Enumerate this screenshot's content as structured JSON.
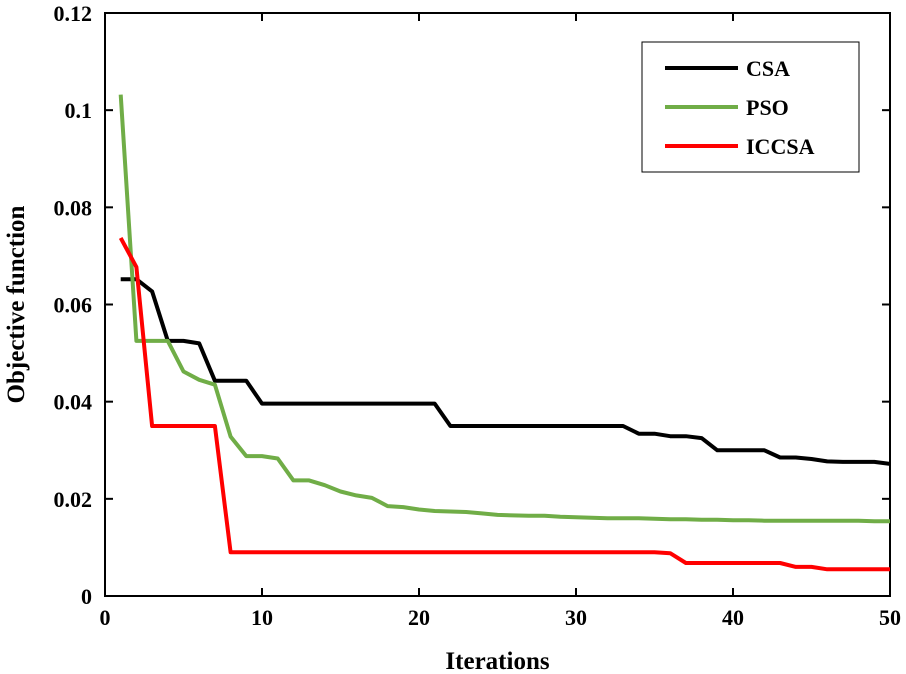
{
  "chart_data": {
    "type": "line",
    "title": "",
    "xlabel": "Iterations",
    "ylabel": "Objective function",
    "xlim": [
      0,
      50
    ],
    "ylim": [
      0,
      0.12
    ],
    "xticks": [
      0,
      10,
      20,
      30,
      40,
      50
    ],
    "xtick_labels": [
      "0",
      "10",
      "20",
      "30",
      "40",
      "50"
    ],
    "yticks": [
      0,
      0.02,
      0.04,
      0.06,
      0.08,
      0.1,
      0.12
    ],
    "ytick_labels": [
      "0",
      "0.02",
      "0.04",
      "0.06",
      "0.08",
      "0.1",
      "0.12"
    ],
    "grid": false,
    "legend_position": "top-right",
    "x": [
      1,
      2,
      3,
      4,
      5,
      6,
      7,
      8,
      9,
      10,
      11,
      12,
      13,
      14,
      15,
      16,
      17,
      18,
      19,
      20,
      21,
      22,
      23,
      24,
      25,
      26,
      27,
      28,
      29,
      30,
      31,
      32,
      33,
      34,
      35,
      36,
      37,
      38,
      39,
      40,
      41,
      42,
      43,
      44,
      45,
      46,
      47,
      48,
      49,
      50
    ],
    "series": [
      {
        "name": "CSA",
        "color": "#000000",
        "values": [
          0.0652,
          0.0652,
          0.0627,
          0.0525,
          0.0525,
          0.052,
          0.0443,
          0.0443,
          0.0443,
          0.0396,
          0.0396,
          0.0396,
          0.0396,
          0.0396,
          0.0396,
          0.0396,
          0.0396,
          0.0396,
          0.0396,
          0.0396,
          0.0396,
          0.035,
          0.035,
          0.035,
          0.035,
          0.035,
          0.035,
          0.035,
          0.035,
          0.035,
          0.035,
          0.035,
          0.035,
          0.0334,
          0.0334,
          0.0329,
          0.0329,
          0.0325,
          0.03,
          0.03,
          0.03,
          0.03,
          0.0285,
          0.0285,
          0.0282,
          0.0277,
          0.0276,
          0.0276,
          0.0276,
          0.0272
        ]
      },
      {
        "name": "PSO",
        "color": "#70AD47",
        "values": [
          0.1032,
          0.0525,
          0.0525,
          0.0525,
          0.0462,
          0.0445,
          0.0435,
          0.0328,
          0.0288,
          0.0288,
          0.0283,
          0.0238,
          0.0238,
          0.0228,
          0.0215,
          0.0207,
          0.0202,
          0.0185,
          0.0183,
          0.0178,
          0.0175,
          0.0174,
          0.0173,
          0.017,
          0.0167,
          0.0166,
          0.0165,
          0.0165,
          0.0163,
          0.0162,
          0.0161,
          0.016,
          0.016,
          0.016,
          0.0159,
          0.0158,
          0.0158,
          0.0157,
          0.0157,
          0.0156,
          0.0156,
          0.0155,
          0.0155,
          0.0155,
          0.0155,
          0.0155,
          0.0155,
          0.0155,
          0.0154,
          0.0154
        ]
      },
      {
        "name": "ICCSA",
        "color": "#FF0000",
        "values": [
          0.0737,
          0.0677,
          0.035,
          0.035,
          0.035,
          0.035,
          0.035,
          0.009,
          0.009,
          0.009,
          0.009,
          0.009,
          0.009,
          0.009,
          0.009,
          0.009,
          0.009,
          0.009,
          0.009,
          0.009,
          0.009,
          0.009,
          0.009,
          0.009,
          0.009,
          0.009,
          0.009,
          0.009,
          0.009,
          0.009,
          0.009,
          0.009,
          0.009,
          0.009,
          0.009,
          0.0088,
          0.0068,
          0.0068,
          0.0068,
          0.0068,
          0.0068,
          0.0068,
          0.0068,
          0.006,
          0.006,
          0.0055,
          0.0055,
          0.0055,
          0.0055,
          0.0055
        ]
      }
    ]
  }
}
